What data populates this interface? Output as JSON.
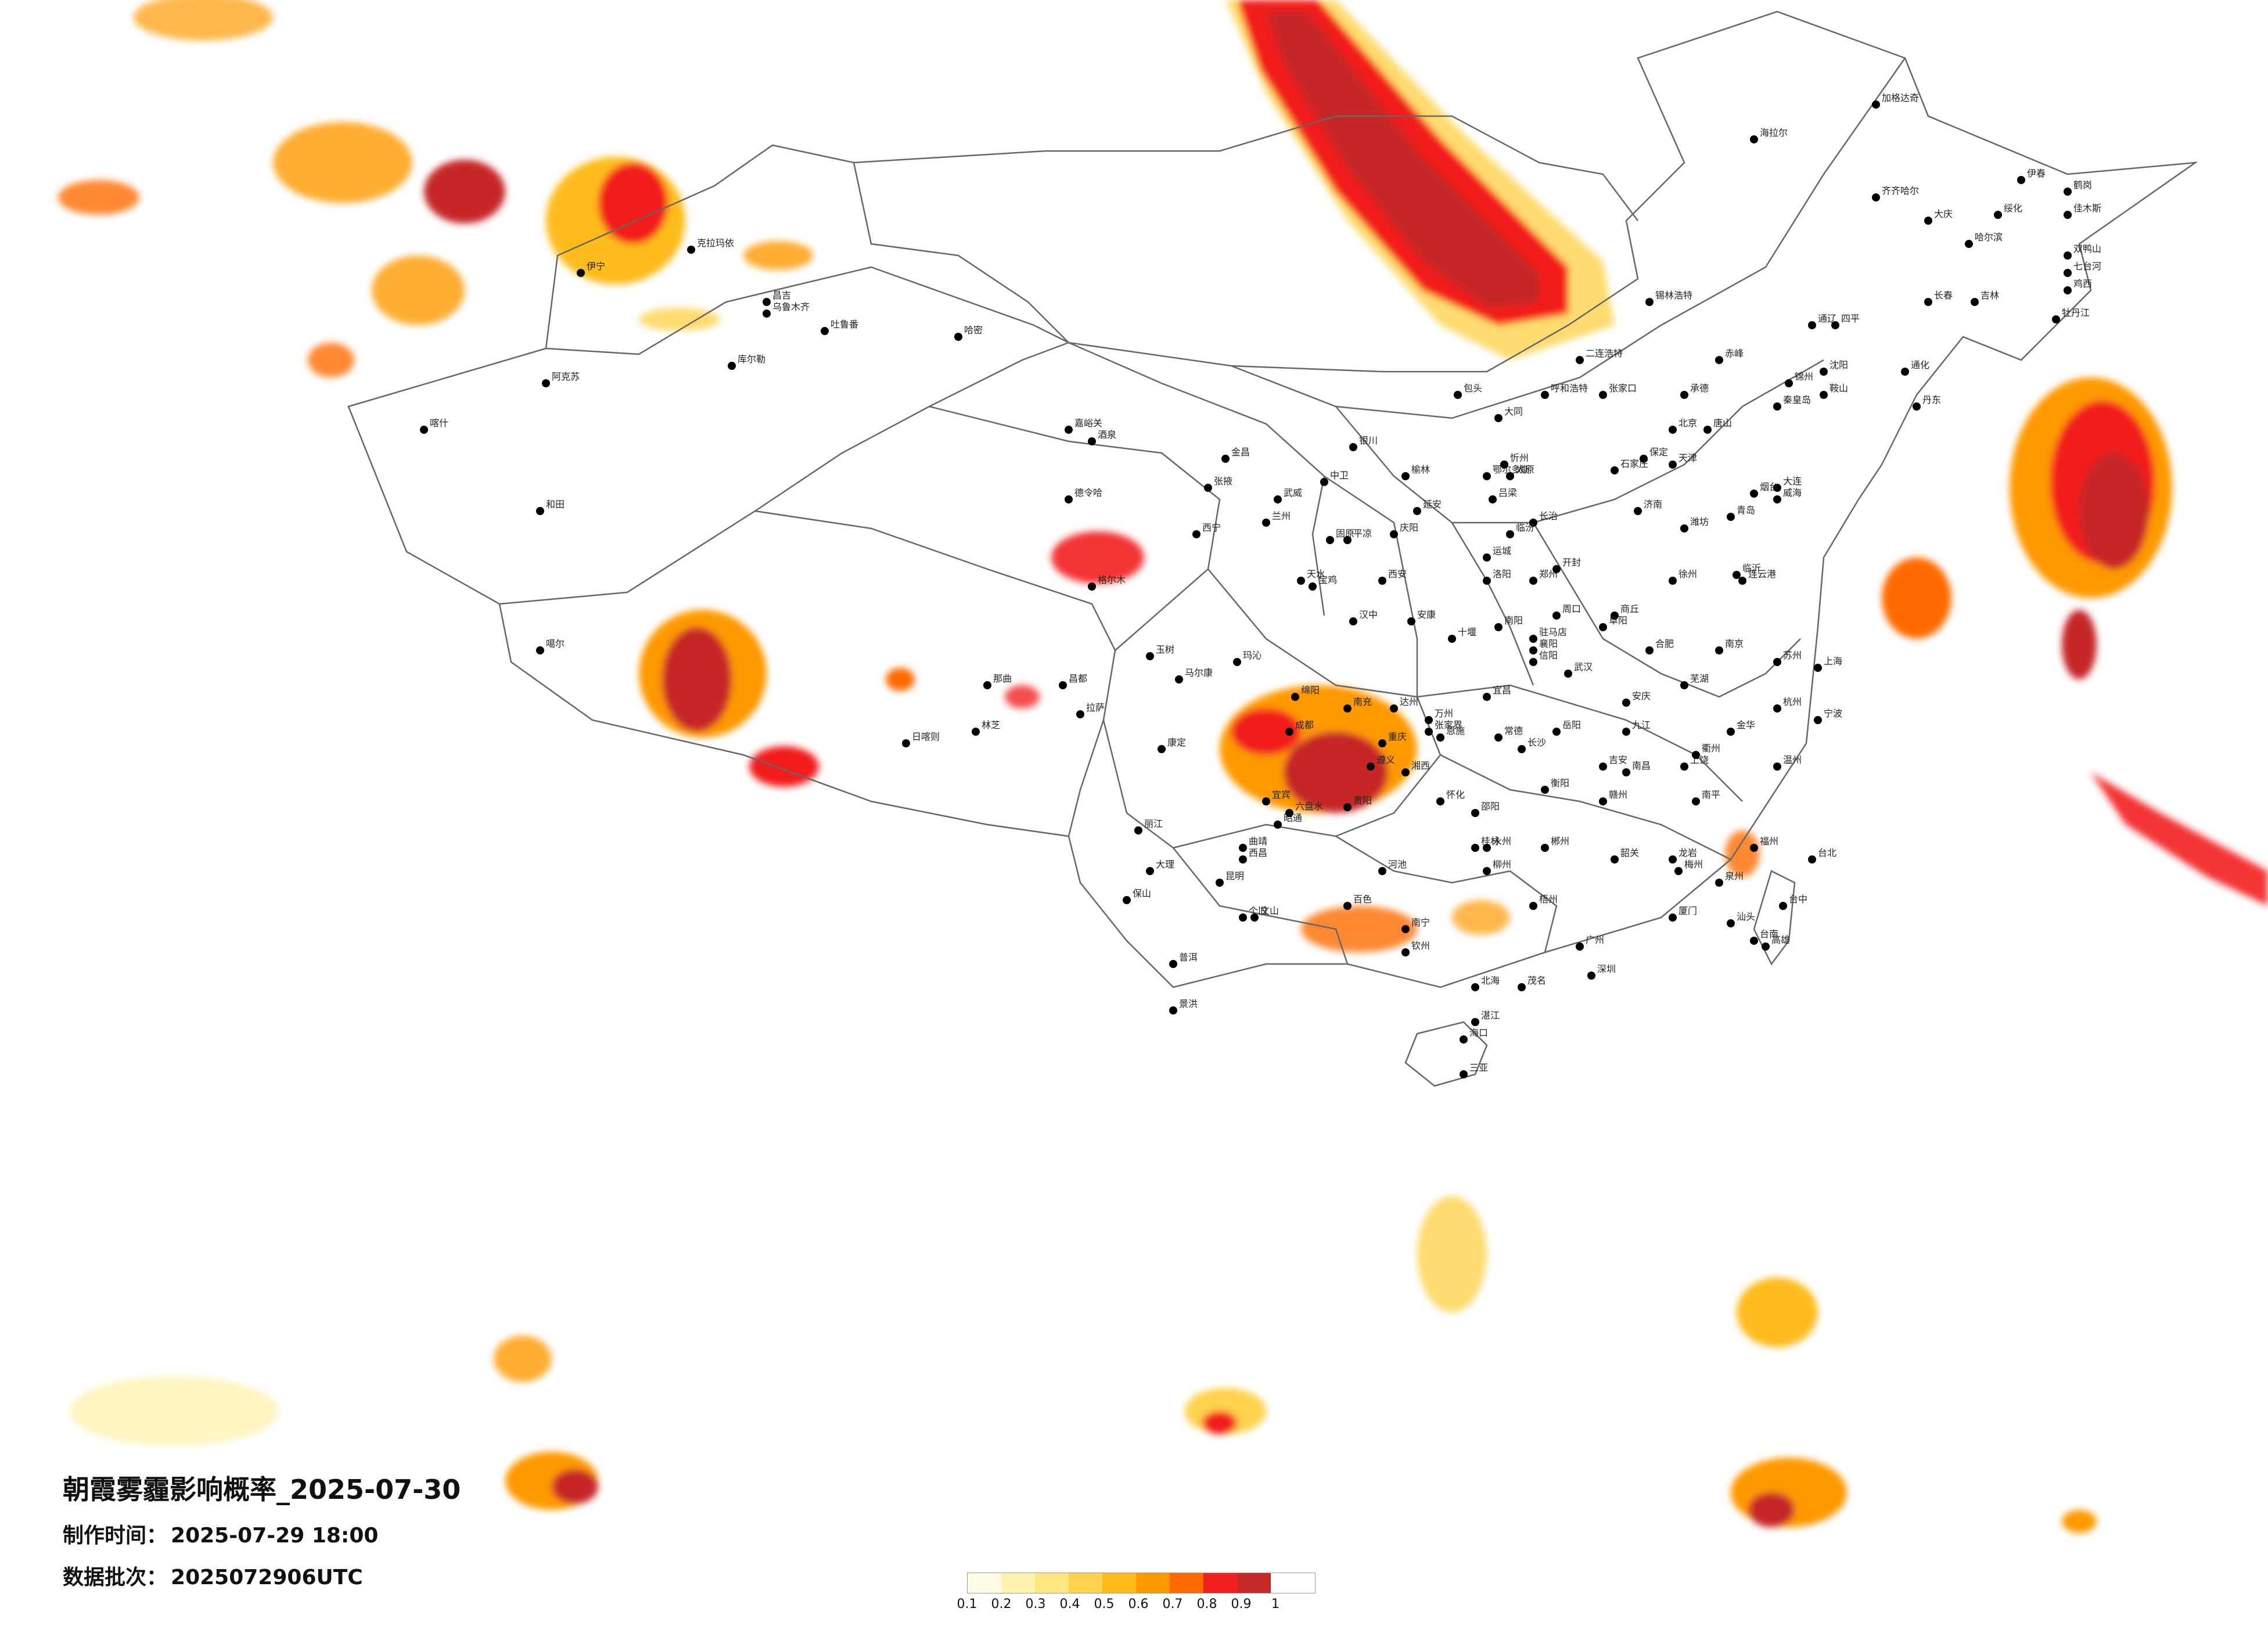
{
  "map": {
    "title": "朝霞雾霾影响概率_2025-07-30",
    "produced": {
      "label": "制作时间：",
      "value": "2025-07-29 18:00"
    },
    "batch": {
      "label": "数据批次：",
      "value": "2025072906UTC"
    }
  },
  "legend": {
    "colors": [
      "#fffbe6",
      "#fff3b0",
      "#ffe680",
      "#ffd24d",
      "#ffbb1a",
      "#ff9900",
      "#ff6a00",
      "#f21f1f",
      "#c62828"
    ],
    "ticks": [
      "0.1",
      "0.2",
      "0.3",
      "0.4",
      "0.5",
      "0.6",
      "0.7",
      "0.8",
      "0.9",
      "1"
    ]
  },
  "cities": [
    "伊宁",
    "库尔勒",
    "克拉玛依",
    "昌吉",
    "乌鲁木齐",
    "吐鲁番",
    "哈密",
    "阿克苏",
    "喀什",
    "和田",
    "嘉峪关",
    "酒泉",
    "张掖",
    "金昌",
    "武威",
    "西宁",
    "兰州",
    "德令哈",
    "格尔木",
    "玛沁",
    "拉萨",
    "日喀则",
    "林芝",
    "昌都",
    "玉树",
    "噶尔",
    "那曲",
    "银川",
    "中卫",
    "固原",
    "呼和浩特",
    "包头",
    "鄂尔多斯",
    "二连浩特",
    "赤峰",
    "通辽",
    "锡林浩特",
    "海拉尔",
    "加格达奇",
    "齐齐哈尔",
    "哈尔滨",
    "大庆",
    "绥化",
    "伊春",
    "佳木斯",
    "鹤岗",
    "双鸭山",
    "七台河",
    "鸡西",
    "牡丹江",
    "长春",
    "吉林",
    "四平",
    "通化",
    "沈阳",
    "大连",
    "鞍山",
    "丹东",
    "锦州",
    "北京",
    "天津",
    "石家庄",
    "保定",
    "唐山",
    "秦皇岛",
    "张家口",
    "承德",
    "太原",
    "大同",
    "忻州",
    "吕梁",
    "长治",
    "临汾",
    "运城",
    "济南",
    "青岛",
    "烟台",
    "威海",
    "潍坊",
    "临沂",
    "郑州",
    "洛阳",
    "开封",
    "商丘",
    "南阳",
    "信阳",
    "驻马店",
    "周口",
    "西安",
    "延安",
    "榆林",
    "宝鸡",
    "汉中",
    "安康",
    "天水",
    "平凉",
    "庆阳",
    "成都",
    "绵阳",
    "南充",
    "达州",
    "宜宾",
    "西昌",
    "马尔康",
    "康定",
    "重庆",
    "万州",
    "贵阳",
    "遵义",
    "六盘水",
    "昆明",
    "大理",
    "保山",
    "丽江",
    "普洱",
    "景洪",
    "文山",
    "曲靖",
    "个旧",
    "昭通",
    "南宁",
    "桂林",
    "柳州",
    "梧州",
    "百色",
    "北海",
    "钦州",
    "河池",
    "广州",
    "深圳",
    "汕头",
    "湛江",
    "茂名",
    "梅州",
    "韶关",
    "海口",
    "三亚",
    "福州",
    "厦门",
    "泉州",
    "南平",
    "龙岩",
    "台北",
    "台中",
    "高雄",
    "台南",
    "南昌",
    "九江",
    "赣州",
    "吉安",
    "上饶",
    "杭州",
    "宁波",
    "温州",
    "金华",
    "衢州",
    "上海",
    "南京",
    "苏州",
    "徐州",
    "连云港",
    "合肥",
    "芜湖",
    "安庆",
    "阜阳",
    "武汉",
    "宜昌",
    "襄阳",
    "十堰",
    "恩施",
    "长沙",
    "岳阳",
    "常德",
    "衡阳",
    "郴州",
    "怀化",
    "邵阳",
    "张家界",
    "永州",
    "湘西"
  ],
  "probability_regions": [
    {
      "region": "north-xinjiang-west",
      "level": 0.9
    },
    {
      "region": "north-xinjiang-center",
      "level": 0.8
    },
    {
      "region": "mongolia-band",
      "level": 1.0
    },
    {
      "region": "hokkaido-kuril",
      "level": 1.0
    },
    {
      "region": "east-pacific",
      "level": 0.8
    },
    {
      "region": "south-tibet-west",
      "level": 0.9
    },
    {
      "region": "south-tibet-east",
      "level": 0.8
    },
    {
      "region": "qinghai-east",
      "level": 0.7
    },
    {
      "region": "sichuan-chongqing",
      "level": 1.0
    },
    {
      "region": "yunnan-guangxi-border",
      "level": 0.8
    },
    {
      "region": "south-sea-north",
      "level": 0.5
    },
    {
      "region": "south-sea-center",
      "level": 0.9
    },
    {
      "region": "south-sea-east",
      "level": 0.9
    },
    {
      "region": "south-sea-southwest",
      "level": 0.9
    }
  ]
}
